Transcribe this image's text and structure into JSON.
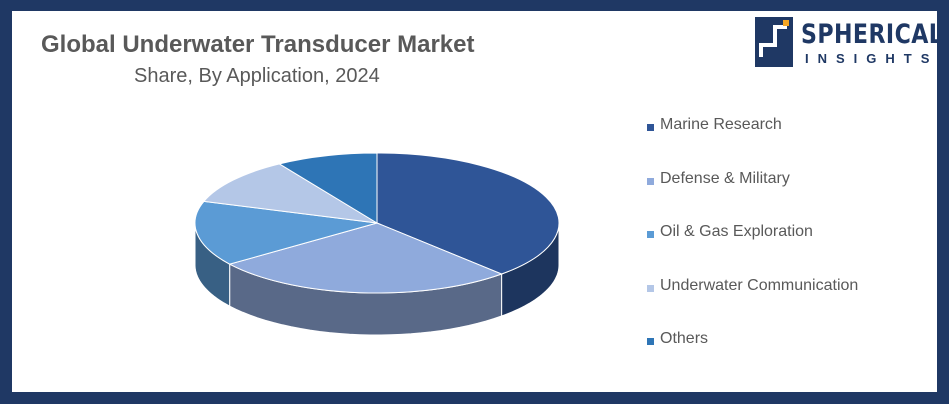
{
  "header": {
    "title": "Global Underwater Transducer Market",
    "subtitle": "Share, By Application, 2024"
  },
  "logo": {
    "name": "SPHERICAL",
    "tagline": "INSIGHTS",
    "color": "#1f3864"
  },
  "chart_data": {
    "type": "pie",
    "style": "3d",
    "title": "Global Underwater Transducer Market",
    "subtitle": "Share, By Application, 2024",
    "legend_position": "right",
    "categories": [
      "Marine Research",
      "Defense & Military",
      "Oil & Gas Exploration",
      "Underwater Communication",
      "Others"
    ],
    "values": [
      38,
      27,
      15,
      11,
      9
    ],
    "colors": [
      "#2f5597",
      "#8faadc",
      "#5b9bd5",
      "#b4c7e7",
      "#2e75b6"
    ]
  }
}
